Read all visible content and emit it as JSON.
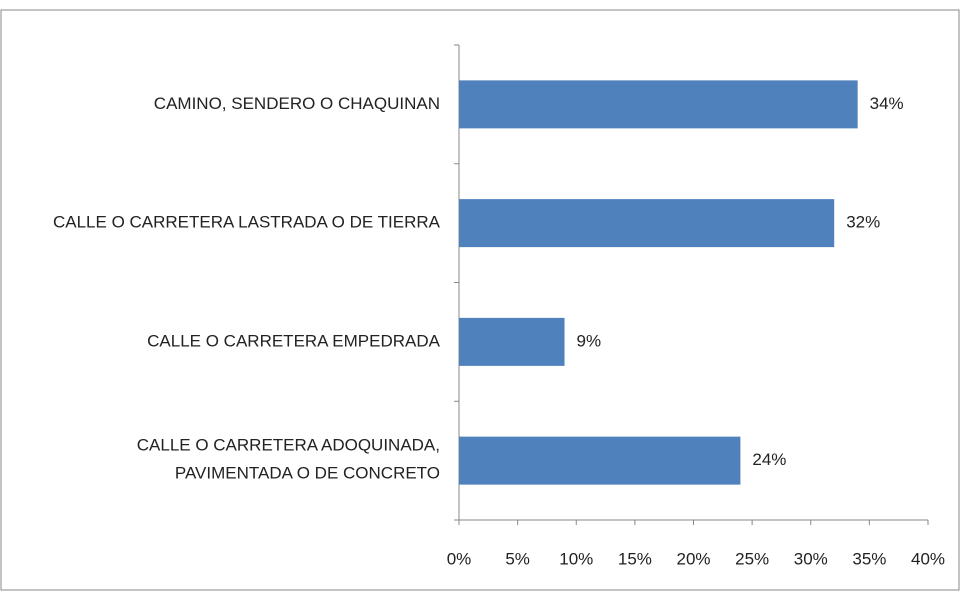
{
  "chart_data": {
    "type": "bar",
    "orientation": "horizontal",
    "categories": [
      "CAMINO, SENDERO O CHAQUINAN",
      "CALLE O CARRETERA LASTRADA O DE TIERRA",
      "CALLE O CARRETERA EMPEDRADA",
      "CALLE O CARRETERA ADOQUINADA,\nPAVIMENTADA O DE CONCRETO"
    ],
    "values": [
      34,
      32,
      9,
      24
    ],
    "value_labels": [
      "34%",
      "32%",
      "9%",
      "24%"
    ],
    "color": "#4f81bd",
    "xlim": [
      0,
      40
    ],
    "xticks": [
      {
        "value": 0,
        "label": "0%"
      },
      {
        "value": 5,
        "label": "5%"
      },
      {
        "value": 10,
        "label": "10%"
      },
      {
        "value": 15,
        "label": "15%"
      },
      {
        "value": 20,
        "label": "20%"
      },
      {
        "value": 25,
        "label": "25%"
      },
      {
        "value": 30,
        "label": "30%"
      },
      {
        "value": 35,
        "label": "35%"
      },
      {
        "value": 40,
        "label": "40%"
      }
    ],
    "grid": false
  }
}
